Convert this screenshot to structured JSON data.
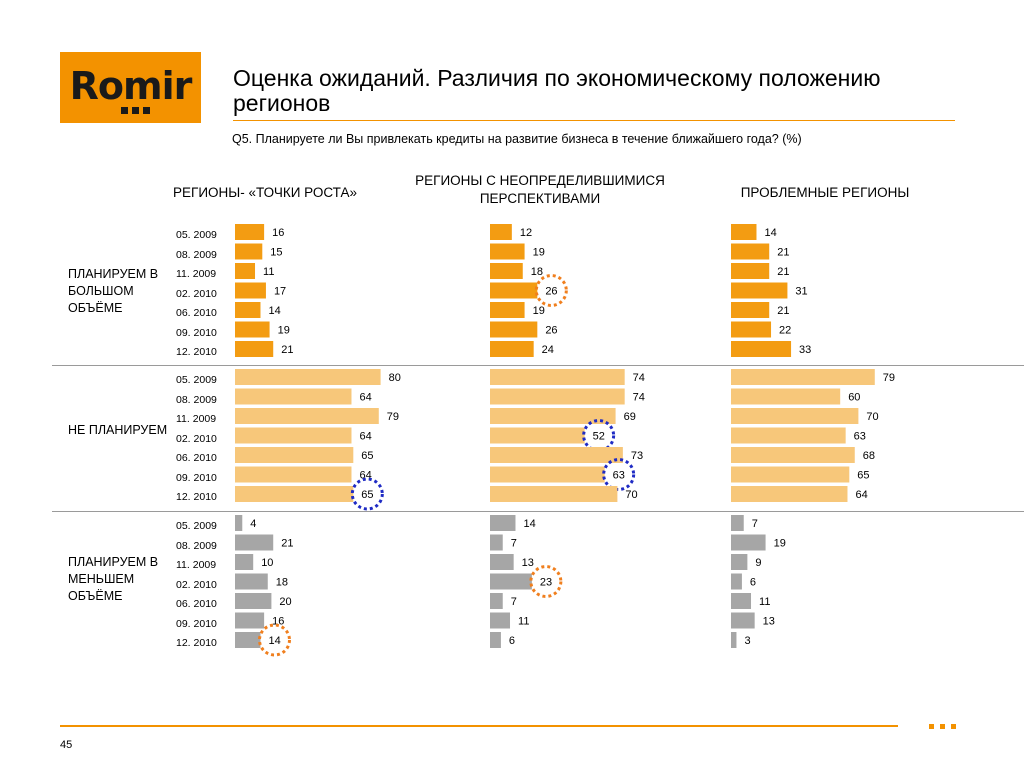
{
  "logo": {
    "text": "Romir"
  },
  "title": "Оценка ожиданий. Различия по экономическому положению регионов",
  "question": "Q5. Планируете ли Вы привлекать кредиты на развитие бизнеса в течение ближайшего года? (%)",
  "columns": [
    "РЕГИОНЫ- «ТОЧКИ РОСТА»",
    "РЕГИОНЫ   С НЕОПРЕДЕЛИВШИМИСЯ ПЕРСПЕКТИВАМИ",
    "ПРОБЛЕМНЫЕ РЕГИОНЫ"
  ],
  "groups": [
    {
      "label": "ПЛАНИРУЕМ В БОЛЬШОМ ОБЪЁМЕ"
    },
    {
      "label": "НЕ ПЛАНИРУЕМ"
    },
    {
      "label": "ПЛАНИРУЕМ В МЕНЬШЕМ ОБЪЁМЕ"
    }
  ],
  "periods": [
    "05. 2009",
    "08. 2009",
    "11. 2009",
    "02. 2010",
    "06. 2010",
    "09. 2010",
    "12. 2010"
  ],
  "colors": {
    "bar_group1": "#f39c12",
    "bar_group2": "#f7c77a",
    "bar_group3": "#a6a6a6",
    "highlight_orange": "#f07f1e",
    "highlight_blue": "#1f2bc4",
    "accent": "#f39200"
  },
  "chart_data": {
    "type": "bar",
    "orientation": "horizontal",
    "categories": [
      "05. 2009",
      "08. 2009",
      "11. 2009",
      "02. 2010",
      "06. 2010",
      "09. 2010",
      "12. 2010"
    ],
    "panels": [
      {
        "group": "ПЛАНИРУЕМ В БОЛЬШОМ ОБЪЁМЕ",
        "region": "РЕГИОНЫ- «ТОЧКИ РОСТА»",
        "values": [
          16,
          15,
          11,
          17,
          14,
          19,
          21
        ]
      },
      {
        "group": "ПЛАНИРУЕМ В БОЛЬШОМ ОБЪЁМЕ",
        "region": "РЕГИОНЫ   С НЕОПРЕДЕЛИВШИМИСЯ ПЕРСПЕКТИВАМИ",
        "values": [
          12,
          19,
          18,
          26,
          19,
          26,
          24
        ],
        "highlight": [
          {
            "index": 3,
            "color": "orange"
          }
        ]
      },
      {
        "group": "ПЛАНИРУЕМ В БОЛЬШОМ ОБЪЁМЕ",
        "region": "ПРОБЛЕМНЫЕ РЕГИОНЫ",
        "values": [
          14,
          21,
          21,
          31,
          21,
          22,
          33
        ]
      },
      {
        "group": "НЕ ПЛАНИРУЕМ",
        "region": "РЕГИОНЫ- «ТОЧКИ РОСТА»",
        "values": [
          80,
          64,
          79,
          64,
          65,
          64,
          65
        ],
        "highlight": [
          {
            "index": 6,
            "color": "blue"
          }
        ]
      },
      {
        "group": "НЕ ПЛАНИРУЕМ",
        "region": "РЕГИОНЫ   С НЕОПРЕДЕЛИВШИМИСЯ ПЕРСПЕКТИВАМИ",
        "values": [
          74,
          74,
          69,
          52,
          73,
          63,
          70
        ],
        "highlight": [
          {
            "index": 3,
            "color": "blue"
          },
          {
            "index": 5,
            "color": "blue"
          }
        ]
      },
      {
        "group": "НЕ ПЛАНИРУЕМ",
        "region": "ПРОБЛЕМНЫЕ РЕГИОНЫ",
        "values": [
          79,
          60,
          70,
          63,
          68,
          65,
          64
        ]
      },
      {
        "group": "ПЛАНИРУЕМ В МЕНЬШЕМ ОБЪЁМЕ",
        "region": "РЕГИОНЫ- «ТОЧКИ РОСТА»",
        "values": [
          4,
          21,
          10,
          18,
          20,
          16,
          14
        ],
        "highlight": [
          {
            "index": 6,
            "color": "orange"
          }
        ]
      },
      {
        "group": "ПЛАНИРУЕМ В МЕНЬШЕМ ОБЪЁМЕ",
        "region": "РЕГИОНЫ   С НЕОПРЕДЕЛИВШИМИСЯ ПЕРСПЕКТИВАМИ",
        "values": [
          14,
          7,
          13,
          23,
          7,
          11,
          6
        ],
        "highlight": [
          {
            "index": 3,
            "color": "orange"
          }
        ]
      },
      {
        "group": "ПЛАНИРУЕМ В МЕНЬШЕМ ОБЪЁМЕ",
        "region": "ПРОБЛЕМНЫЕ РЕГИОНЫ",
        "values": [
          7,
          19,
          9,
          6,
          11,
          13,
          3
        ]
      }
    ]
  },
  "page_number": "45"
}
